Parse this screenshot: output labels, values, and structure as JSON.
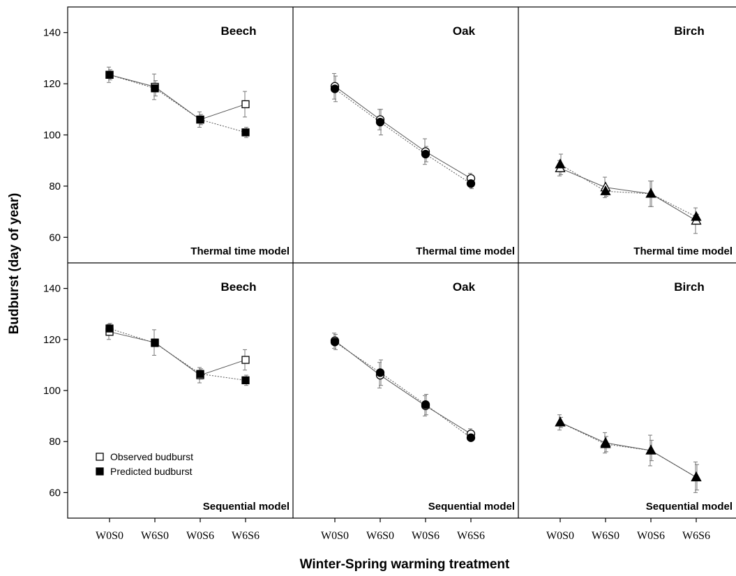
{
  "chart_data": {
    "type": "line",
    "xlabel": "Winter-Spring warming treatment",
    "ylabel": "Budburst (day of year)",
    "categories": [
      "W0S0",
      "W6S0",
      "W0S6",
      "W6S6"
    ],
    "ylim": [
      50,
      150
    ],
    "yticks": [
      60,
      80,
      100,
      120,
      140
    ],
    "legend": {
      "placement": "bottom-left of lower-left panel",
      "entries": [
        {
          "label": "Observed budburst",
          "fill": "open"
        },
        {
          "label": "Predicted budburst",
          "fill": "filled"
        }
      ]
    },
    "panels": [
      {
        "row": 0,
        "col": 0,
        "species": "Beech",
        "model": "Thermal time model",
        "marker": "square",
        "series": [
          {
            "name": "Observed budburst",
            "values": [
              123.5,
              118.8,
              106,
              112
            ],
            "error": [
              3,
              5,
              3,
              5
            ]
          },
          {
            "name": "Predicted budburst",
            "values": [
              123.5,
              118.2,
              106,
              101
            ],
            "error": [
              2,
              3,
              2,
              2
            ]
          }
        ]
      },
      {
        "row": 0,
        "col": 1,
        "species": "Oak",
        "model": "Thermal time model",
        "marker": "circle",
        "series": [
          {
            "name": "Observed budburst",
            "values": [
              119,
              106,
              93.5,
              83
            ],
            "error": [
              5,
              4,
              5,
              2
            ]
          },
          {
            "name": "Predicted budburst",
            "values": [
              118,
              105,
              92.5,
              81
            ],
            "error": [
              5,
              5,
              3,
              2
            ]
          }
        ]
      },
      {
        "row": 0,
        "col": 2,
        "species": "Birch",
        "model": "Thermal time model",
        "marker": "triangle",
        "series": [
          {
            "name": "Observed budburst",
            "values": [
              87,
              79.5,
              77,
              66.5
            ],
            "error": [
              3,
              4,
              5,
              5
            ]
          },
          {
            "name": "Predicted budburst",
            "values": [
              88.5,
              78,
              77,
              68
            ],
            "error": [
              4,
              2,
              5,
              1
            ]
          }
        ]
      },
      {
        "row": 1,
        "col": 0,
        "species": "Beech",
        "model": "Sequential model",
        "marker": "square",
        "series": [
          {
            "name": "Observed budburst",
            "values": [
              123,
              118.8,
              106,
              112
            ],
            "error": [
              3,
              5,
              3,
              4
            ]
          },
          {
            "name": "Predicted budburst",
            "values": [
              124.3,
              118.6,
              106.5,
              104
            ],
            "error": [
              2,
              1,
              2,
              2
            ]
          }
        ]
      },
      {
        "row": 1,
        "col": 1,
        "species": "Oak",
        "model": "Sequential model",
        "marker": "circle",
        "series": [
          {
            "name": "Observed budburst",
            "values": [
              119.5,
              106,
              94,
              83
            ],
            "error": [
              3,
              5,
              4,
              2
            ]
          },
          {
            "name": "Predicted budburst",
            "values": [
              119,
              107,
              94.5,
              81.5
            ],
            "error": [
              3,
              5,
              4,
              1
            ]
          }
        ]
      },
      {
        "row": 1,
        "col": 2,
        "species": "Birch",
        "model": "Sequential model",
        "marker": "triangle",
        "series": [
          {
            "name": "Observed budburst",
            "values": [
              87.5,
              79.5,
              76.5,
              66
            ],
            "error": [
              3,
              4,
              6,
              6
            ]
          },
          {
            "name": "Predicted budburst",
            "values": [
              87.5,
              79,
              76.5,
              66
            ],
            "error": [
              2,
              3,
              4,
              5
            ]
          }
        ]
      }
    ]
  }
}
